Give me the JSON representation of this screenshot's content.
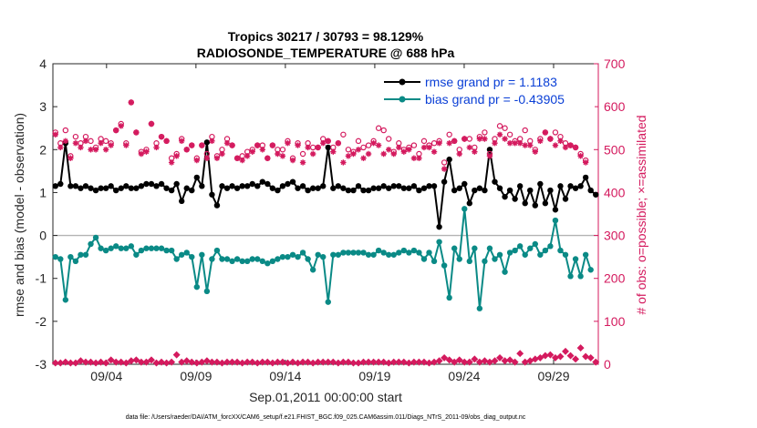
{
  "chart_data": {
    "type": "line",
    "title": "Tropics 30217 / 30793 = 98.129%",
    "subtitle": "RADIOSONDE_TEMPERATURE @ 688 hPa",
    "xlabel": "Sep.01,2011 00:00:00 start",
    "ylabel_left": "rmse and bias (model - observation)",
    "ylabel_right": "# of obs: o=possible; ×=assimilated",
    "footnote": "data file: /Users/raeder/DAI/ATM_forcXX/CAM6_setup/f.e21.FHIST_BGC.f09_025.CAM6assim.011/Diags_NTrS_2011-09/obs_diag_output.nc",
    "xlim": [
      0,
      30.5
    ],
    "ylim_left": [
      -3,
      4
    ],
    "ylim_right": [
      0,
      700
    ],
    "x_tick_labels": [
      "09/04",
      "09/09",
      "09/14",
      "09/19",
      "09/24",
      "09/29"
    ],
    "x_tick_values": [
      3,
      8,
      13,
      18,
      23,
      28
    ],
    "y_left_ticks": [
      -3,
      -2,
      -1,
      0,
      1,
      2,
      3,
      4
    ],
    "y_right_ticks": [
      0,
      100,
      200,
      300,
      400,
      500,
      600,
      700
    ],
    "zero_line": 0,
    "colors": {
      "rmse": "#000000",
      "bias": "#0a8a86",
      "obs": "#d41a5e",
      "legend_text": "#0a3fd6",
      "zero_line": "#b3b3b3"
    },
    "series": [
      {
        "name": "rmse grand pr = 1.1183",
        "axis": "left",
        "color": "#000000",
        "values": [
          1.15,
          1.2,
          2.15,
          1.15,
          1.15,
          1.1,
          1.15,
          1.1,
          1.05,
          1.1,
          1.1,
          1.15,
          1.05,
          1.1,
          1.15,
          1.1,
          1.1,
          1.15,
          1.2,
          1.2,
          1.15,
          1.2,
          1.1,
          1.05,
          1.2,
          0.8,
          1.1,
          1.05,
          1.35,
          1.15,
          2.17,
          0.95,
          0.7,
          1.15,
          1.1,
          1.15,
          1.1,
          1.15,
          1.15,
          1.2,
          1.15,
          1.25,
          1.2,
          1.1,
          1.05,
          1.15,
          1.2,
          1.25,
          1.1,
          1.15,
          1.05,
          1.1,
          1.1,
          1.15,
          2.05,
          1.1,
          1.15,
          1.1,
          1.05,
          1.05,
          1.15,
          1.05,
          1.05,
          1.1,
          1.1,
          1.15,
          1.1,
          1.15,
          1.15,
          1.1,
          1.1,
          1.15,
          1.05,
          1.1,
          1.15,
          1.15,
          0.2,
          1.25,
          1.77,
          1.05,
          1.1,
          1.2,
          0.75,
          1.05,
          1.1,
          1.05,
          2.0,
          1.25,
          1.1,
          0.9,
          1.05,
          0.85,
          1.15,
          0.75,
          1.05,
          0.7,
          1.2,
          0.75,
          1.05,
          0.6,
          1.15,
          0.85,
          1.15,
          1.1,
          1.15,
          1.35,
          1.05,
          0.95
        ]
      },
      {
        "name": "bias grand pr = -0.43905",
        "axis": "left",
        "color": "#0a8a86",
        "values": [
          -0.5,
          -0.55,
          -1.5,
          -0.5,
          -0.6,
          -0.45,
          -0.45,
          -0.2,
          -0.05,
          -0.3,
          -0.35,
          -0.3,
          -0.25,
          -0.3,
          -0.3,
          -0.25,
          -0.45,
          -0.35,
          -0.3,
          -0.3,
          -0.3,
          -0.3,
          -0.35,
          -0.35,
          -0.55,
          -0.45,
          -0.4,
          -0.5,
          -1.2,
          -0.45,
          -1.3,
          -0.55,
          -0.35,
          -0.55,
          -0.55,
          -0.6,
          -0.55,
          -0.6,
          -0.6,
          -0.55,
          -0.55,
          -0.6,
          -0.65,
          -0.6,
          -0.55,
          -0.5,
          -0.5,
          -0.45,
          -0.5,
          -0.4,
          -0.55,
          -0.8,
          -0.45,
          -0.5,
          -1.55,
          -0.45,
          -0.45,
          -0.4,
          -0.4,
          -0.4,
          -0.4,
          -0.4,
          -0.45,
          -0.45,
          -0.35,
          -0.4,
          -0.45,
          -0.45,
          -0.4,
          -0.35,
          -0.4,
          -0.35,
          -0.4,
          -0.55,
          -0.4,
          -0.6,
          -0.15,
          -0.7,
          -1.45,
          -0.3,
          -0.55,
          0.62,
          -0.6,
          -0.3,
          -1.7,
          -0.6,
          -0.3,
          -0.55,
          -0.45,
          -0.85,
          -0.4,
          -0.35,
          -0.25,
          -0.45,
          -0.3,
          -0.2,
          -0.45,
          -0.35,
          -0.25,
          0.35,
          -0.35,
          -0.45,
          -0.95,
          -0.55,
          -0.95,
          -0.45,
          -0.8
        ]
      },
      {
        "name": "obs possible",
        "axis": "right",
        "color": "#d41a5e",
        "marker": "circle",
        "values": [
          540,
          515,
          545,
          485,
          530,
          515,
          530,
          520,
          505,
          525,
          520,
          515,
          545,
          560,
          515,
          610,
          540,
          495,
          500,
          560,
          515,
          530,
          520,
          480,
          490,
          525,
          500,
          510,
          480,
          510,
          490,
          530,
          485,
          500,
          525,
          510,
          480,
          485,
          495,
          500,
          510,
          510,
          480,
          510,
          500,
          500,
          520,
          480,
          515,
          490,
          515,
          505,
          505,
          525,
          520,
          505,
          515,
          535,
          500,
          495,
          520,
          505,
          510,
          520,
          550,
          545,
          525,
          495,
          515,
          500,
          505,
          510,
          490,
          520,
          510,
          515,
          520,
          470,
          535,
          520,
          500,
          525,
          525,
          505,
          530,
          540,
          490,
          525,
          555,
          550,
          535,
          520,
          525,
          545,
          520,
          500,
          525,
          540,
          525,
          540,
          530,
          515,
          510,
          505,
          490,
          475
        ]
      },
      {
        "name": "obs assimilated",
        "axis": "right",
        "color": "#d41a5e",
        "marker": "asterisk",
        "values": [
          535,
          505,
          520,
          480,
          515,
          505,
          520,
          500,
          500,
          515,
          500,
          510,
          545,
          555,
          510,
          610,
          540,
          490,
          495,
          560,
          505,
          530,
          520,
          470,
          485,
          520,
          500,
          510,
          475,
          510,
          480,
          520,
          480,
          490,
          515,
          510,
          480,
          475,
          485,
          495,
          510,
          500,
          480,
          510,
          490,
          485,
          515,
          475,
          510,
          470,
          505,
          490,
          505,
          515,
          520,
          495,
          515,
          470,
          485,
          490,
          500,
          480,
          490,
          515,
          510,
          490,
          500,
          490,
          505,
          495,
          500,
          480,
          480,
          505,
          505,
          495,
          515,
          455,
          515,
          520,
          490,
          525,
          505,
          495,
          525,
          525,
          485,
          515,
          535,
          525,
          515,
          515,
          515,
          510,
          510,
          495,
          520,
          540,
          525,
          510,
          520,
          505,
          510,
          505,
          485,
          470
        ]
      },
      {
        "name": "obs baseline",
        "axis": "right",
        "color": "#d41a5e",
        "marker": "diamond",
        "values": [
          3,
          3,
          5,
          3,
          3,
          8,
          5,
          5,
          3,
          5,
          3,
          10,
          5,
          5,
          3,
          8,
          10,
          5,
          5,
          10,
          3,
          5,
          3,
          5,
          22,
          5,
          8,
          5,
          3,
          5,
          8,
          5,
          5,
          3,
          5,
          5,
          5,
          3,
          5,
          5,
          3,
          5,
          5,
          3,
          5,
          5,
          3,
          5,
          3,
          5,
          5,
          3,
          5,
          5,
          5,
          5,
          3,
          5,
          5,
          3,
          3,
          5,
          5,
          5,
          5,
          5,
          3,
          5,
          5,
          5,
          3,
          5,
          5,
          5,
          3,
          5,
          8,
          15,
          10,
          5,
          10,
          5,
          5,
          12,
          5,
          8,
          5,
          8,
          15,
          8,
          10,
          5,
          25,
          5,
          8,
          12,
          15,
          20,
          22,
          15,
          18,
          30,
          20,
          12,
          38,
          18,
          15,
          5
        ]
      }
    ]
  }
}
